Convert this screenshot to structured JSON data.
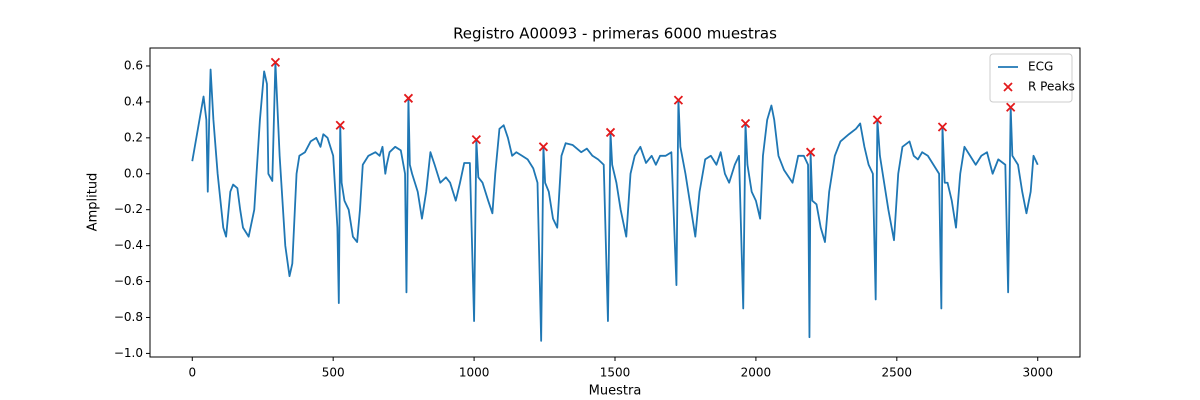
{
  "chart_data": {
    "type": "line",
    "title": "Registro A00093 - primeras 6000 muestras",
    "x_label": "Muestra",
    "y_label": "Amplitud",
    "xlim": [
      -150,
      3150
    ],
    "ylim": [
      -1.02,
      0.7
    ],
    "xticks": [
      0,
      500,
      1000,
      1500,
      2000,
      2500,
      3000
    ],
    "yticks": [
      {
        "value": -1.0,
        "label": "−1.0"
      },
      {
        "value": -0.8,
        "label": "−0.8"
      },
      {
        "value": -0.6,
        "label": "−0.6"
      },
      {
        "value": -0.4,
        "label": "−0.4"
      },
      {
        "value": -0.2,
        "label": "−0.2"
      },
      {
        "value": 0.0,
        "label": "0.0"
      },
      {
        "value": 0.2,
        "label": "0.2"
      },
      {
        "value": 0.4,
        "label": "0.4"
      },
      {
        "value": 0.6,
        "label": "0.6"
      }
    ],
    "legend": "upper right",
    "series": [
      {
        "name": "ECG",
        "type": "line",
        "color": "#1f77b4",
        "x": [
          0,
          20,
          40,
          50,
          55,
          60,
          65,
          75,
          90,
          110,
          120,
          135,
          145,
          160,
          170,
          180,
          200,
          220,
          240,
          255,
          265,
          270,
          284,
          295,
          310,
          330,
          345,
          355,
          370,
          380,
          400,
          420,
          440,
          455,
          465,
          480,
          500,
          515,
          520,
          525,
          530,
          540,
          555,
          570,
          585,
          595,
          605,
          625,
          650,
          665,
          675,
          685,
          690,
          700,
          720,
          740,
          755,
          760,
          767,
          772,
          780,
          800,
          815,
          830,
          845,
          860,
          880,
          900,
          915,
          935,
          950,
          965,
          985,
          1000,
          1008,
          1015,
          1030,
          1050,
          1065,
          1075,
          1090,
          1105,
          1120,
          1135,
          1150,
          1170,
          1190,
          1210,
          1225,
          1238,
          1246,
          1252,
          1265,
          1280,
          1295,
          1310,
          1325,
          1350,
          1380,
          1400,
          1420,
          1440,
          1460,
          1475,
          1484,
          1490,
          1505,
          1520,
          1540,
          1555,
          1570,
          1590,
          1610,
          1630,
          1645,
          1660,
          1680,
          1700,
          1718,
          1725,
          1732,
          1750,
          1770,
          1785,
          1800,
          1820,
          1840,
          1860,
          1875,
          1890,
          1905,
          1925,
          1940,
          1955,
          1963,
          1970,
          1985,
          2000,
          2015,
          2025,
          2040,
          2055,
          2065,
          2080,
          2100,
          2130,
          2150,
          2170,
          2185,
          2190,
          2194,
          2200,
          2215,
          2230,
          2245,
          2260,
          2280,
          2300,
          2330,
          2355,
          2370,
          2385,
          2400,
          2415,
          2425,
          2431,
          2440,
          2455,
          2470,
          2490,
          2505,
          2520,
          2545,
          2560,
          2575,
          2590,
          2610,
          2630,
          2650,
          2658,
          2662,
          2670,
          2680,
          2695,
          2710,
          2725,
          2740,
          2760,
          2780,
          2800,
          2820,
          2840,
          2860,
          2885,
          2895,
          2904,
          2910,
          2930,
          2945,
          2960,
          2975,
          2985,
          3000
        ],
        "values": [
          0.07,
          0.25,
          0.43,
          0.3,
          -0.1,
          0.3,
          0.58,
          0.3,
          0,
          -0.3,
          -0.35,
          -0.1,
          -0.06,
          -0.08,
          -0.2,
          -0.3,
          -0.35,
          -0.2,
          0.3,
          0.57,
          0.5,
          0,
          -0.04,
          0.62,
          0.1,
          -0.4,
          -0.57,
          -0.5,
          0,
          0.1,
          0.12,
          0.18,
          0.2,
          0.15,
          0.22,
          0.2,
          0.1,
          -0.3,
          -0.72,
          0.27,
          -0.05,
          -0.15,
          -0.2,
          -0.35,
          -0.38,
          -0.2,
          0.05,
          0.1,
          0.12,
          0.1,
          0.15,
          0,
          0.05,
          0.12,
          0.15,
          0.13,
          0,
          -0.66,
          0.42,
          0.05,
          0,
          -0.1,
          -0.25,
          -0.1,
          0.12,
          0.05,
          -0.05,
          -0.02,
          -0.05,
          -0.15,
          -0.05,
          0.06,
          0.06,
          -0.82,
          0.19,
          -0.02,
          -0.05,
          -0.15,
          -0.22,
          0,
          0.25,
          0.27,
          0.2,
          0.1,
          0.12,
          0.1,
          0.08,
          0.03,
          -0.05,
          -0.93,
          0.15,
          -0.05,
          -0.1,
          -0.25,
          -0.3,
          0.1,
          0.17,
          0.16,
          0.12,
          0.14,
          0.1,
          0.08,
          0.05,
          -0.82,
          0.23,
          0.05,
          -0.05,
          -0.2,
          -0.35,
          0,
          0.1,
          0.15,
          0.06,
          0.1,
          0.05,
          0.1,
          0.1,
          0.12,
          -0.62,
          0.41,
          0.15,
          0,
          -0.2,
          -0.35,
          -0.1,
          0.08,
          0.1,
          0.05,
          0.12,
          0,
          -0.05,
          0.05,
          0.1,
          -0.75,
          0.28,
          0.05,
          -0.1,
          -0.15,
          -0.25,
          0.1,
          0.3,
          0.38,
          0.3,
          0.1,
          0.02,
          -0.05,
          0.1,
          0.1,
          0.05,
          -0.91,
          0.12,
          -0.15,
          -0.17,
          -0.3,
          -0.38,
          -0.1,
          0.1,
          0.18,
          0.22,
          0.25,
          0.28,
          0.15,
          0.05,
          0,
          -0.7,
          0.3,
          0.1,
          -0.05,
          -0.2,
          -0.37,
          0,
          0.15,
          0.18,
          0.1,
          0.08,
          0.12,
          0.1,
          0.05,
          0,
          -0.75,
          0.26,
          -0.05,
          -0.05,
          -0.15,
          -0.3,
          0,
          0.15,
          0.1,
          0.05,
          0.1,
          0.12,
          0,
          0.08,
          0.05,
          -0.66,
          0.37,
          0.1,
          0.05,
          -0.1,
          -0.22,
          -0.1,
          0.1,
          0.05
        ]
      },
      {
        "name": "R Peaks",
        "type": "scatter",
        "color": "#e31a1c",
        "x": [
          295,
          525,
          767,
          1008,
          1246,
          1484,
          1725,
          1963,
          2194,
          2431,
          2662,
          2904
        ],
        "values": [
          0.62,
          0.27,
          0.42,
          0.19,
          0.15,
          0.23,
          0.41,
          0.28,
          0.12,
          0.3,
          0.26,
          0.37
        ]
      }
    ]
  }
}
